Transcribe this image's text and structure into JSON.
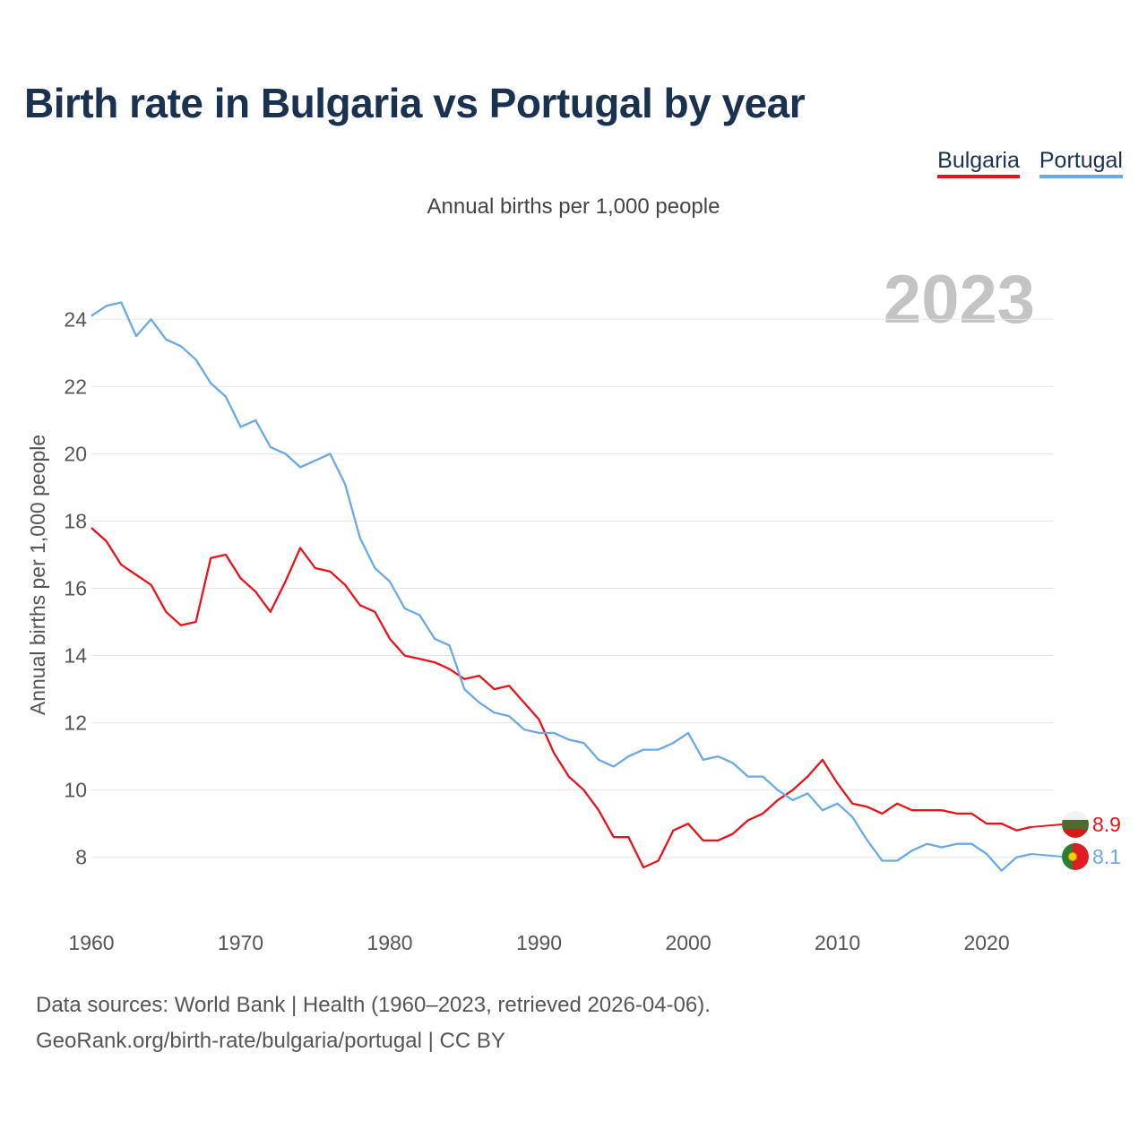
{
  "title": "Birth rate in Bulgaria vs Portugal by year",
  "subtitle": "Annual births per 1,000 people",
  "sources": {
    "line1": "Data sources: World Bank | Health (1960–2023, retrieved 2026-04-06).",
    "line2": "GeoRank.org/birth-rate/bulgaria/portugal | CC BY"
  },
  "colors": {
    "bulgaria": "#e8131b",
    "portugal": "#6aa9e4",
    "grid": "#e6e6e6",
    "tick": "#555555",
    "year_label": "#c4c4c4"
  },
  "chart_data": {
    "type": "line",
    "title": "Birth rate in Bulgaria vs Portugal by year",
    "ylabel": "Annual births per 1,000 people",
    "xlabel": "",
    "year_label": "2023",
    "xlim": [
      1960,
      2024.5
    ],
    "ylim": [
      6.5,
      25.5
    ],
    "x_ticks": [
      1960,
      1970,
      1980,
      1990,
      2000,
      2010,
      2020
    ],
    "y_ticks": [
      8,
      10,
      12,
      14,
      16,
      18,
      20,
      22,
      24
    ],
    "x": [
      1960,
      1961,
      1962,
      1963,
      1964,
      1965,
      1966,
      1967,
      1968,
      1969,
      1970,
      1971,
      1972,
      1973,
      1974,
      1975,
      1976,
      1977,
      1978,
      1979,
      1980,
      1981,
      1982,
      1983,
      1984,
      1985,
      1986,
      1987,
      1988,
      1989,
      1990,
      1991,
      1992,
      1993,
      1994,
      1995,
      1996,
      1997,
      1998,
      1999,
      2000,
      2001,
      2002,
      2003,
      2004,
      2005,
      2006,
      2007,
      2008,
      2009,
      2010,
      2011,
      2012,
      2013,
      2014,
      2015,
      2016,
      2017,
      2018,
      2019,
      2020,
      2021,
      2022,
      2023
    ],
    "series": [
      {
        "name": "Bulgaria",
        "color": "#e8131b",
        "end_label": "8.9",
        "values": [
          17.8,
          17.4,
          16.7,
          16.4,
          16.1,
          15.3,
          14.9,
          15.0,
          16.9,
          17.0,
          16.3,
          15.9,
          15.3,
          16.2,
          17.2,
          16.6,
          16.5,
          16.1,
          15.5,
          15.3,
          14.5,
          14.0,
          13.9,
          13.8,
          13.6,
          13.3,
          13.4,
          13.0,
          13.1,
          12.6,
          12.1,
          11.1,
          10.4,
          10.0,
          9.4,
          8.6,
          8.6,
          7.7,
          7.9,
          8.8,
          9.0,
          8.5,
          8.5,
          8.7,
          9.1,
          9.3,
          9.7,
          10.0,
          10.4,
          10.9,
          10.2,
          9.6,
          9.5,
          9.3,
          9.6,
          9.4,
          9.4,
          9.4,
          9.3,
          9.3,
          9.0,
          9.0,
          8.8,
          8.9
        ]
      },
      {
        "name": "Portugal",
        "color": "#6aa9e4",
        "end_label": "8.1",
        "values": [
          24.1,
          24.4,
          24.5,
          23.5,
          24.0,
          23.4,
          23.2,
          22.8,
          22.1,
          21.7,
          20.8,
          21.0,
          20.2,
          20.0,
          19.6,
          19.8,
          20.0,
          19.1,
          17.5,
          16.6,
          16.2,
          15.4,
          15.2,
          14.5,
          14.3,
          13.0,
          12.6,
          12.3,
          12.2,
          11.8,
          11.7,
          11.7,
          11.5,
          11.4,
          10.9,
          10.7,
          11.0,
          11.2,
          11.2,
          11.4,
          11.7,
          10.9,
          11.0,
          10.8,
          10.4,
          10.4,
          10.0,
          9.7,
          9.9,
          9.4,
          9.6,
          9.2,
          8.5,
          7.9,
          7.9,
          8.2,
          8.4,
          8.3,
          8.4,
          8.4,
          8.1,
          7.6,
          8.0,
          8.1
        ]
      }
    ]
  }
}
